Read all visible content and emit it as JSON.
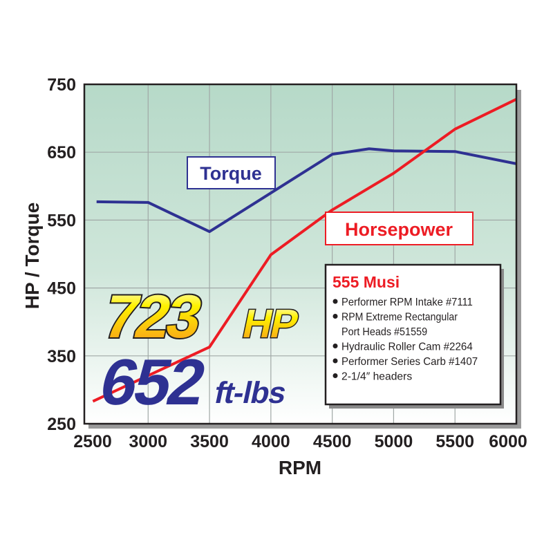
{
  "chart_data": {
    "type": "line",
    "xlabel": "RPM",
    "ylabel": "HP / Torque",
    "xlim": [
      2500,
      6000
    ],
    "ylim": [
      250,
      750
    ],
    "x_ticks": [
      2500,
      3000,
      3500,
      4000,
      4500,
      5000,
      5500,
      6000
    ],
    "y_ticks": [
      250,
      350,
      450,
      550,
      650,
      750
    ],
    "grid": true,
    "background": "teal-to-white gradient",
    "series": [
      {
        "name": "Torque",
        "color": "#2e3192",
        "points": [
          [
            2580,
            577
          ],
          [
            3000,
            576
          ],
          [
            3500,
            533
          ],
          [
            4500,
            647
          ],
          [
            4800,
            655
          ],
          [
            5000,
            652
          ],
          [
            5500,
            651
          ],
          [
            6000,
            633
          ]
        ]
      },
      {
        "name": "Horsepower",
        "color": "#ed1c24",
        "points": [
          [
            2550,
            283
          ],
          [
            3500,
            363
          ],
          [
            4000,
            499
          ],
          [
            4500,
            565
          ],
          [
            5000,
            619
          ],
          [
            5500,
            684
          ],
          [
            6000,
            728
          ]
        ]
      }
    ],
    "annotations": {
      "peak_hp_value": "723",
      "peak_hp_unit": "HP",
      "peak_torque_value": "652",
      "peak_torque_unit": "ft-lbs"
    },
    "legend_box": {
      "title": "555 Musi",
      "title_color": "#ed1c24",
      "items": [
        "Performer RPM Intake #7111",
        "RPM Extreme Rectangular",
        "Port Heads #51559",
        "Hydraulic Roller Cam #2264",
        "Performer Series Carb #1407",
        "2-1/4″ headers"
      ],
      "bullets": [
        true,
        true,
        false,
        true,
        true,
        true
      ]
    }
  }
}
